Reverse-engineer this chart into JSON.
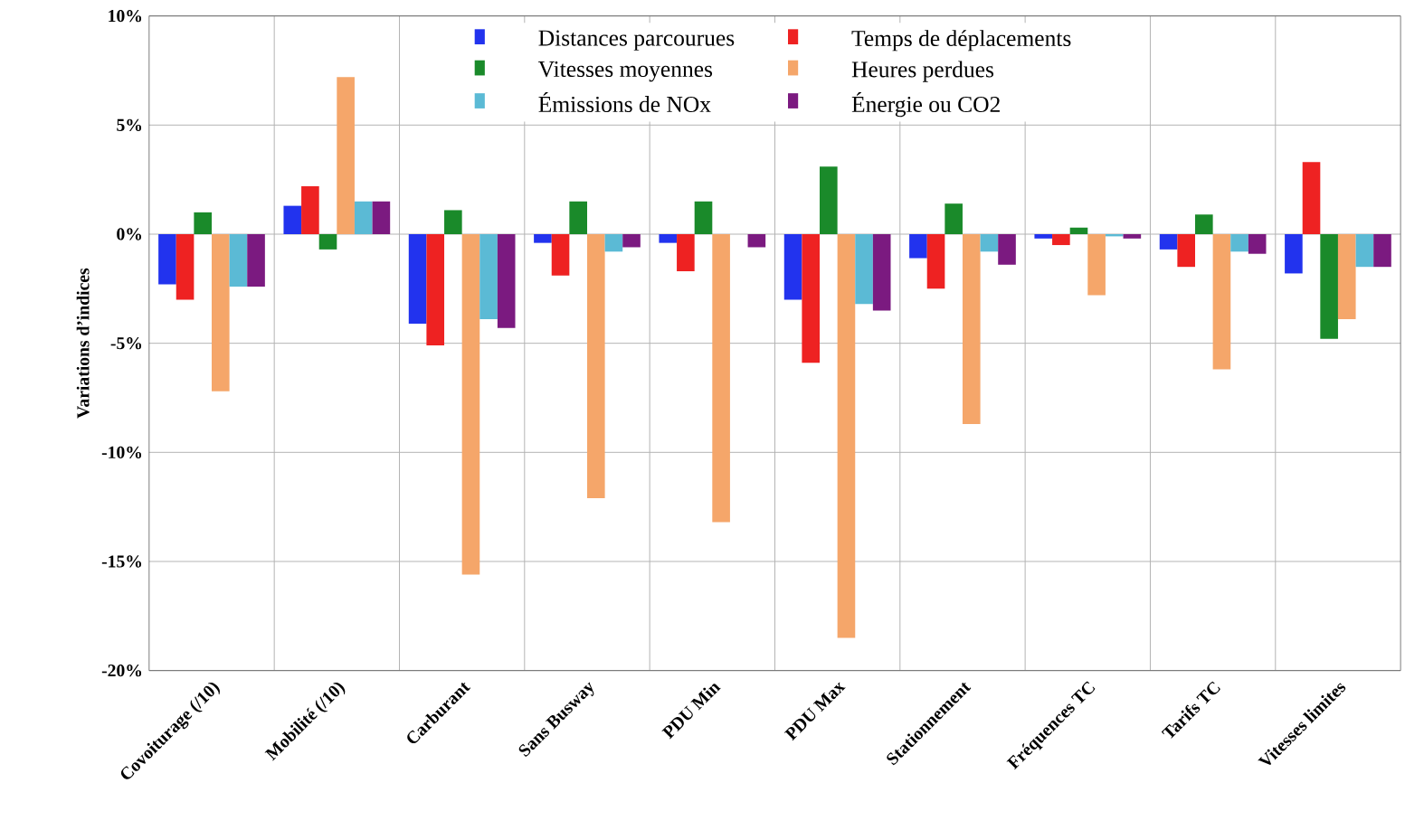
{
  "chart_data": {
    "type": "bar",
    "ylabel": "Variations d’indices",
    "categories": [
      "Covoiturage (/10)",
      "Mobilité (/10)",
      "Carburant",
      "Sans Busway",
      "PDU Min",
      "PDU Max",
      "Stationnement",
      "Fréquences TC",
      "Tarifs TC",
      "Vitesses limites"
    ],
    "series": [
      {
        "name": "Distances parcourues",
        "color": "#2233ee",
        "values": [
          -2.3,
          1.3,
          -4.1,
          -0.4,
          -0.4,
          -3.0,
          -1.1,
          -0.2,
          -0.7,
          -1.8
        ]
      },
      {
        "name": "Temps de déplacements",
        "color": "#ee2222",
        "values": [
          -3.0,
          2.2,
          -5.1,
          -1.9,
          -1.7,
          -5.9,
          -2.5,
          -0.5,
          -1.5,
          3.3
        ]
      },
      {
        "name": "Vitesses moyennes",
        "color": "#1a8a2a",
        "values": [
          1.0,
          -0.7,
          1.1,
          1.5,
          1.5,
          3.1,
          1.4,
          0.3,
          0.9,
          -4.8
        ]
      },
      {
        "name": "Heures perdues",
        "color": "#f5a66a",
        "values": [
          -7.2,
          7.2,
          -15.6,
          -12.1,
          -13.2,
          -18.5,
          -8.7,
          -2.8,
          -6.2,
          -3.9
        ]
      },
      {
        "name": "Émissions de NOx",
        "color": "#5bbad5",
        "values": [
          -2.4,
          1.5,
          -3.9,
          -0.8,
          0,
          -3.2,
          -0.8,
          -0.1,
          -0.8,
          -1.5
        ]
      },
      {
        "name": "Énergie ou CO2",
        "color": "#7b1a80",
        "values": [
          -2.4,
          1.5,
          -4.3,
          -0.6,
          -0.6,
          -3.5,
          -1.4,
          -0.2,
          -0.9,
          -1.5
        ]
      }
    ],
    "ylim": [
      -20,
      10
    ],
    "yticks": [
      {
        "value": 10,
        "label": "10%"
      },
      {
        "value": 5,
        "label": "5%"
      },
      {
        "value": 0,
        "label": "0%"
      },
      {
        "value": -5,
        "label": "-5%"
      },
      {
        "value": -10,
        "label": "-10%"
      },
      {
        "value": -15,
        "label": "-15%"
      },
      {
        "value": -20,
        "label": "-20%"
      }
    ],
    "grid": true,
    "legend": "top"
  }
}
